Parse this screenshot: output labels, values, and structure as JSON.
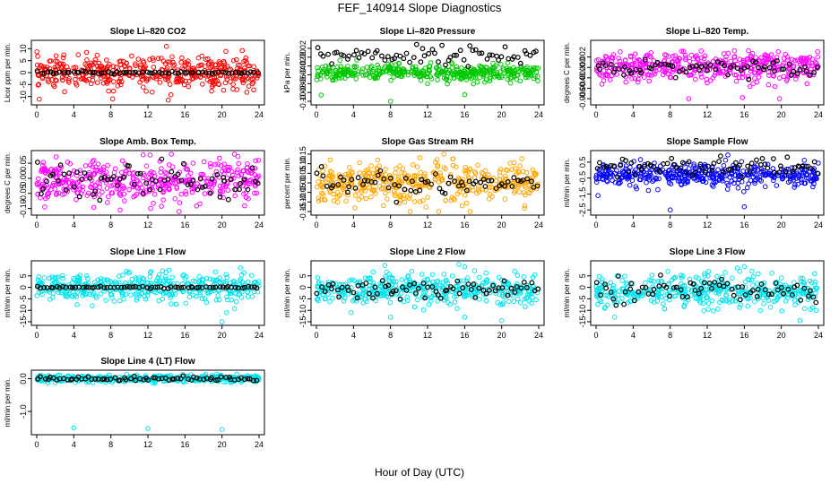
{
  "figure": {
    "title": "FEF_140914  Slope Diagnostics",
    "xlabel": "Hour of Day (UTC)",
    "x_ticks": [
      0,
      4,
      8,
      12,
      16,
      20,
      24
    ],
    "x_range": [
      0,
      24
    ],
    "colors": {
      "black_series": "#000000"
    }
  },
  "chart_data": [
    {
      "type": "scatter",
      "title": "Slope Li–820 CO2",
      "ylabel": "Licor ppm per min.",
      "ylim": [
        -12,
        12
      ],
      "y_ticks": [
        -10,
        -5,
        0,
        5,
        10
      ],
      "y_tick_labels": [
        "-10",
        "-5",
        "0",
        "5",
        "10"
      ],
      "color": "#ff0000",
      "series_center": 0,
      "series_spread": 3.2,
      "black_center": 0,
      "black_spread": 0.3,
      "outliers": [
        [
          14.0,
          11
        ],
        [
          14.2,
          -11.5
        ],
        [
          8.2,
          -11
        ],
        [
          3.0,
          -8
        ]
      ]
    },
    {
      "type": "scatter",
      "title": "Slope Li–820 Pressure",
      "ylabel": "kPa per min.",
      "ylim": [
        -0.1,
        0.03
      ],
      "y_ticks": [
        -0.1,
        -0.08,
        -0.06,
        -0.04,
        -0.02,
        0,
        0.02
      ],
      "y_tick_labels": [
        "-0.10",
        "-0.08",
        "-0.06",
        "-0.04",
        "-0.02",
        "0.00",
        "0.02"
      ],
      "color": "#00c800",
      "series_center": -0.035,
      "series_spread": 0.009,
      "black_center": 0.005,
      "black_spread": 0.01,
      "outliers": [
        [
          0.5,
          -0.086
        ],
        [
          8.0,
          -0.1
        ],
        [
          16.0,
          -0.085
        ],
        [
          12.0,
          -0.06
        ]
      ]
    },
    {
      "type": "scatter",
      "title": "Slope Li–820 Temp.",
      "ylabel": "degrees C per min.",
      "ylim": [
        -0.0065,
        0.0045
      ],
      "y_ticks": [
        -0.006,
        -0.004,
        -0.002,
        0,
        0.002
      ],
      "y_tick_labels": [
        "-0.006",
        "-0.004",
        "-0.002",
        "0.000",
        "0.002"
      ],
      "color": "#ff00ff",
      "series_center": 0,
      "series_spread": 0.0014,
      "black_center": 0,
      "black_spread": 0.0007,
      "outliers": [
        [
          10.0,
          -0.006
        ],
        [
          15.8,
          -0.0058
        ],
        [
          19.8,
          -0.006
        ]
      ]
    },
    {
      "type": "scatter",
      "title": "Slope Amb. Box Temp.",
      "ylabel": "degrees C per min.",
      "ylim": [
        -0.11,
        0.08
      ],
      "y_ticks": [
        -0.1,
        -0.05,
        0,
        0.05
      ],
      "y_tick_labels": [
        "-0.10",
        "-0.05",
        "0.00",
        "0.05"
      ],
      "color": "#ff00ff",
      "series_center": -0.01,
      "series_spread": 0.035,
      "black_center": -0.01,
      "black_spread": 0.035,
      "outliers": [
        [
          11.5,
          0.078
        ],
        [
          9.0,
          -0.105
        ],
        [
          12.3,
          -0.1
        ]
      ]
    },
    {
      "type": "scatter",
      "title": "Slope Gas Stream RH",
      "ylabel": "percent per min.",
      "ylim": [
        -0.15,
        0.15
      ],
      "y_ticks": [
        -0.15,
        -0.1,
        -0.05,
        0,
        0.05,
        0.1,
        0.15
      ],
      "y_tick_labels": [
        "-0.15",
        "-0.10",
        "-0.05",
        "0.00",
        "0.05",
        "0.10",
        "0.15"
      ],
      "color": "#ffa500",
      "series_center": 0,
      "series_spread": 0.05,
      "black_center": 0,
      "black_spread": 0.03,
      "outliers": [
        [
          1.5,
          0.12
        ],
        [
          13.2,
          -0.155
        ],
        [
          22.5,
          -0.12
        ]
      ]
    },
    {
      "type": "scatter",
      "title": "Slope Sample Flow",
      "ylabel": "ml/min per min.",
      "ylim": [
        -2.6,
        1.0
      ],
      "y_ticks": [
        -2.5,
        -1.5,
        -0.5,
        0.5
      ],
      "y_tick_labels": [
        "-2.5",
        "-1.5",
        "-0.5",
        "0.5"
      ],
      "color": "#0000ff",
      "series_center": -0.3,
      "series_spread": 0.35,
      "black_center": 0.2,
      "black_spread": 0.3,
      "outliers": [
        [
          8.0,
          -2.5
        ],
        [
          16.0,
          -2.3
        ],
        [
          0.2,
          -1.6
        ],
        [
          14.2,
          -1.2
        ]
      ]
    },
    {
      "type": "scatter",
      "title": "Slope Line 1 Flow",
      "ylabel": "ml/min per min.",
      "ylim": [
        -15,
        10
      ],
      "y_ticks": [
        -15,
        -10,
        -5,
        0,
        5
      ],
      "y_tick_labels": [
        "-15",
        "-10",
        "-5",
        "0",
        "5"
      ],
      "color": "#00e5ee",
      "series_center": 0,
      "series_spread": 3.0,
      "black_center": 0,
      "black_spread": 0.2,
      "outliers": [
        [
          20.0,
          -15
        ],
        [
          20.5,
          -11
        ],
        [
          6.0,
          -8
        ],
        [
          22.0,
          8.5
        ]
      ]
    },
    {
      "type": "scatter",
      "title": "Slope Line 2 Flow",
      "ylabel": "ml/min per min.",
      "ylim": [
        -15,
        10
      ],
      "y_ticks": [
        -15,
        -10,
        -5,
        0,
        5
      ],
      "y_tick_labels": [
        "-15",
        "-10",
        "-5",
        "0",
        "5"
      ],
      "color": "#00e5ee",
      "series_center": -1,
      "series_spread": 3.2,
      "black_center": -1,
      "black_spread": 2.5,
      "outliers": [
        [
          16.0,
          -13
        ],
        [
          16.0,
          9
        ],
        [
          20.0,
          -14.5
        ],
        [
          8.0,
          -13
        ]
      ]
    },
    {
      "type": "scatter",
      "title": "Slope Line 3 Flow",
      "ylabel": "ml/min per min.",
      "ylim": [
        -15,
        10
      ],
      "y_ticks": [
        -15,
        -10,
        -5,
        0,
        5
      ],
      "y_tick_labels": [
        "-15",
        "-10",
        "-5",
        "0",
        "5"
      ],
      "color": "#00e5ee",
      "series_center": -2,
      "series_spread": 3.5,
      "black_center": -1,
      "black_spread": 2.5,
      "outliers": [
        [
          16.0,
          9
        ],
        [
          15.5,
          7
        ],
        [
          2.0,
          -13
        ],
        [
          22.0,
          -14.5
        ]
      ]
    },
    {
      "type": "scatter",
      "title": "Slope Line 4 (LT) Flow",
      "ylabel": "ml/min per min.",
      "ylim": [
        -1.6,
        0.15
      ],
      "y_ticks": [
        -1.0,
        0.0
      ],
      "y_tick_labels": [
        "-1.0",
        "0.0"
      ],
      "color": "#00e5ee",
      "series_center": 0,
      "series_spread": 0.05,
      "black_center": 0,
      "black_spread": 0.03,
      "outliers": [
        [
          4.0,
          -1.5
        ],
        [
          12.0,
          -1.52
        ],
        [
          20.0,
          -1.55
        ]
      ]
    }
  ]
}
